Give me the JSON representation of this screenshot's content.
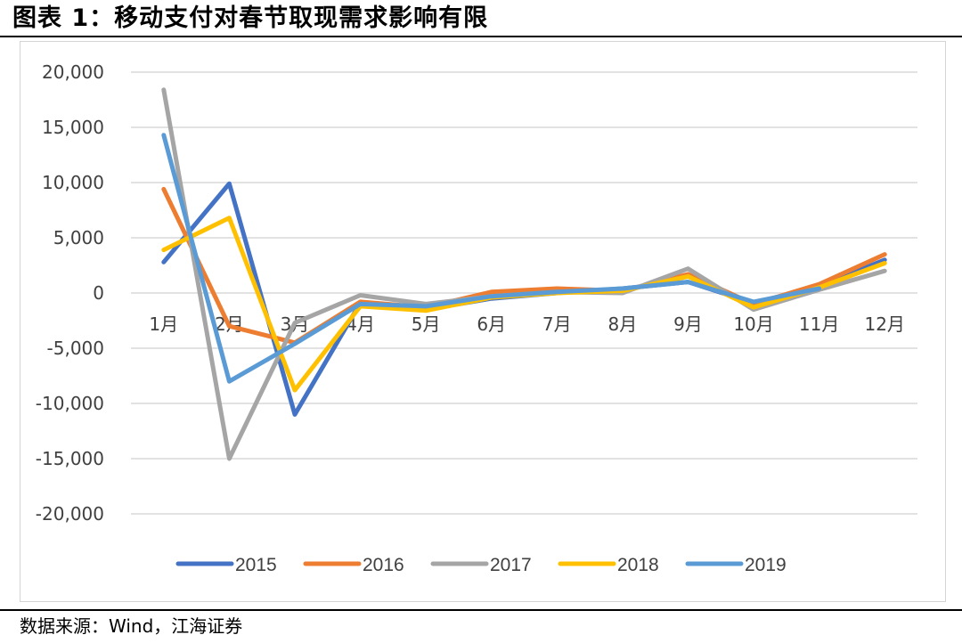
{
  "header": {
    "title": "图表 1：移动支付对春节取现需求影响有限"
  },
  "footer": {
    "source": "数据来源：Wind，江海证券"
  },
  "chart_data": {
    "type": "line",
    "title": "",
    "xlabel": "",
    "ylabel": "",
    "categories": [
      "1月",
      "2月",
      "3月",
      "4月",
      "5月",
      "6月",
      "7月",
      "8月",
      "9月",
      "10月",
      "11月",
      "12月"
    ],
    "ylim": [
      -20000,
      20000
    ],
    "yticks": [
      20000,
      15000,
      10000,
      5000,
      0,
      -5000,
      -10000,
      -15000,
      -20000
    ],
    "ytick_labels": [
      "20,000",
      "15,000",
      "10,000",
      "5,000",
      "0",
      "-5,000",
      "-10,000",
      "-15,000",
      "-20,000"
    ],
    "grid": true,
    "legend_position": "bottom",
    "series": [
      {
        "name": "2015",
        "color": "#4472C4",
        "values": [
          2800,
          9900,
          -11000,
          -900,
          -1500,
          -500,
          0,
          400,
          1000,
          -900,
          600,
          3000
        ]
      },
      {
        "name": "2016",
        "color": "#ED7D31",
        "values": [
          9400,
          -3000,
          -4500,
          -800,
          -1300,
          100,
          400,
          200,
          1700,
          -1000,
          800,
          3500
        ]
      },
      {
        "name": "2017",
        "color": "#A5A5A5",
        "values": [
          18400,
          -15000,
          -2700,
          -200,
          -1000,
          -300,
          100,
          0,
          2200,
          -1500,
          300,
          2000
        ]
      },
      {
        "name": "2018",
        "color": "#FFC000",
        "values": [
          3900,
          6800,
          -8800,
          -1200,
          -1600,
          -400,
          0,
          200,
          1500,
          -1300,
          500,
          2700
        ]
      },
      {
        "name": "2019",
        "color": "#5B9BD5",
        "values": [
          14300,
          -8000,
          -4600,
          -1000,
          -1200,
          -300,
          100,
          400,
          1000,
          -800,
          400,
          null
        ]
      }
    ]
  }
}
